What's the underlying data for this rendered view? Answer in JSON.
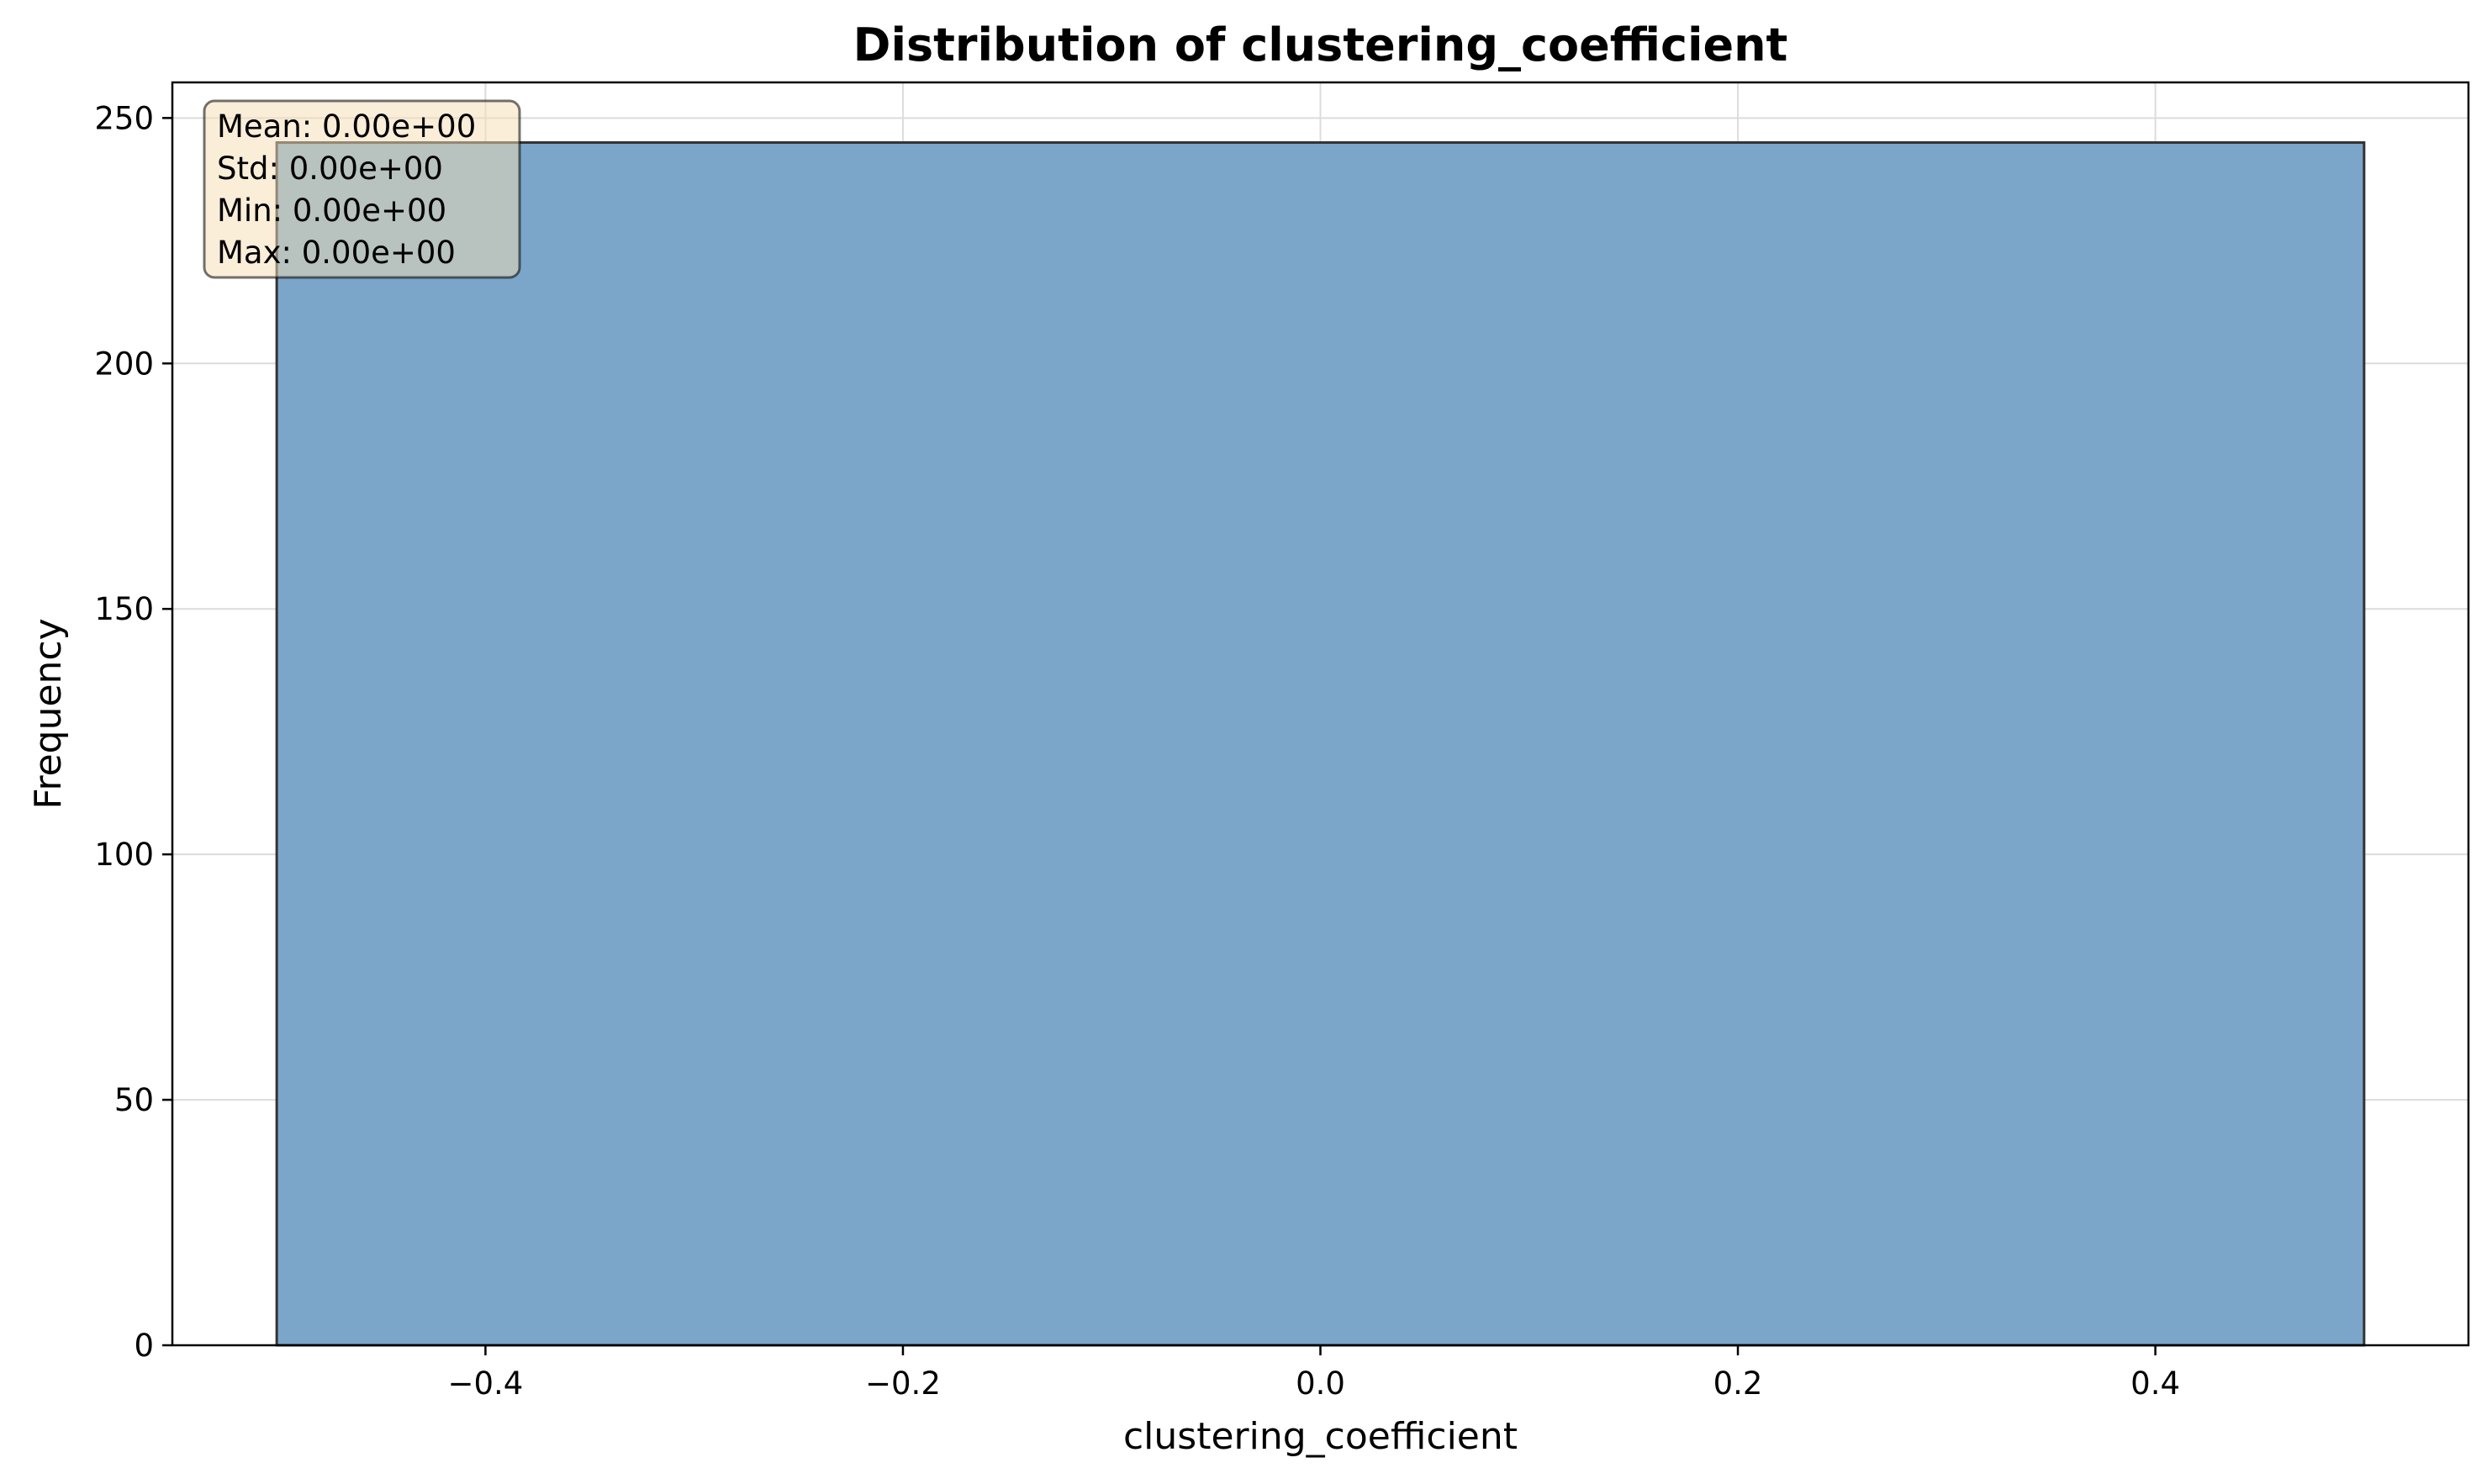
{
  "chart_data": {
    "type": "bar",
    "title": "Distribution of clustering_coefficient",
    "xlabel": "clustering_coefficient",
    "ylabel": "Frequency",
    "xlim": [
      -0.55,
      0.55
    ],
    "ylim": [
      0,
      257.25
    ],
    "xticks": [
      -0.4,
      -0.2,
      0.0,
      0.2,
      0.4
    ],
    "xtick_labels": [
      "−0.4",
      "−0.2",
      "0.0",
      "0.2",
      "0.4"
    ],
    "yticks": [
      0,
      50,
      100,
      150,
      200,
      250
    ],
    "ytick_labels": [
      "0",
      "50",
      "100",
      "150",
      "200",
      "250"
    ],
    "grid": true,
    "bins": [
      {
        "x0": -0.5,
        "x1": 0.5,
        "value": 245
      }
    ],
    "annotation": {
      "lines": [
        "Mean: 0.00e+00",
        "Std: 0.00e+00",
        "Min: 0.00e+00",
        "Max: 0.00e+00"
      ],
      "placement": "top-left"
    },
    "colors": {
      "bar_fill": "#7ba6ca",
      "bar_edge": "#333333",
      "stats_box_fill": "#f5deb3",
      "grid": "#dcdcdc"
    }
  }
}
